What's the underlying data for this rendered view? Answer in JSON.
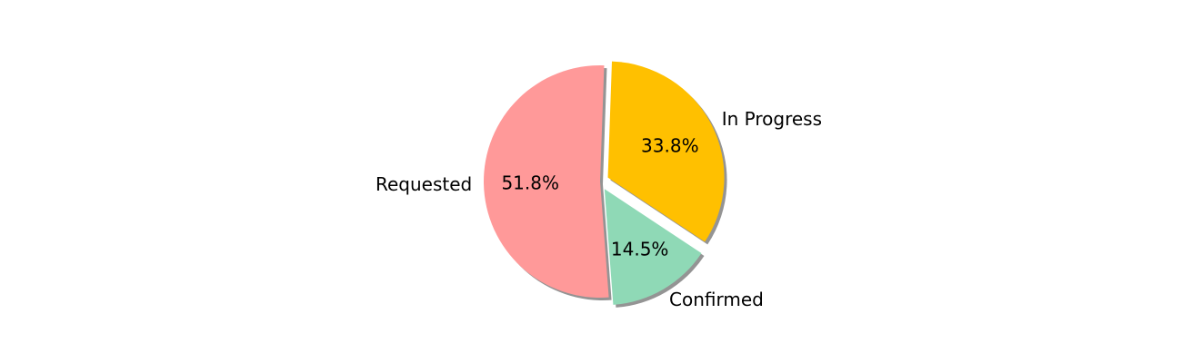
{
  "chart_data": {
    "type": "pie",
    "title": "",
    "slices": [
      {
        "label": "Requested",
        "percent_label": "51.8%",
        "value": 51.8,
        "color": "#ff9999",
        "exploded": false
      },
      {
        "label": "Confirmed",
        "percent_label": "14.5%",
        "value": 14.5,
        "color": "#8fd9b6",
        "exploded": true
      },
      {
        "label": "In Progress",
        "percent_label": "33.8%",
        "value": 33.8,
        "color": "#ffc000",
        "exploded": true
      }
    ],
    "shadow": true,
    "label_color": "#000000"
  }
}
